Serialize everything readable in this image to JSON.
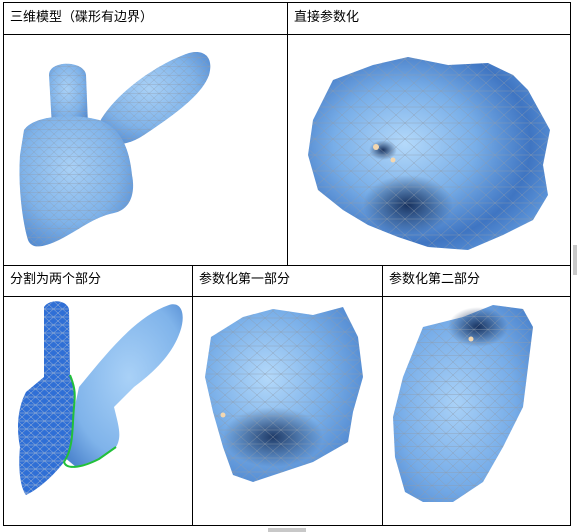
{
  "panels": {
    "p1": {
      "caption": "三维模型（碟形有边界）"
    },
    "p2": {
      "caption": "直接参数化"
    },
    "p3": {
      "caption": "分割为两个部分"
    },
    "p4": {
      "caption": "参数化第一部分"
    },
    "p5": {
      "caption": "参数化第二部分"
    }
  },
  "colors": {
    "mesh_light": "#8fc0f2",
    "mesh_mid": "#5f9ee2",
    "mesh_dark": "#1c3f78",
    "wire": "#9aa6b2",
    "part_blue": "#2f6fd6",
    "boundary_green": "#22c03a",
    "grid": "#000000"
  }
}
